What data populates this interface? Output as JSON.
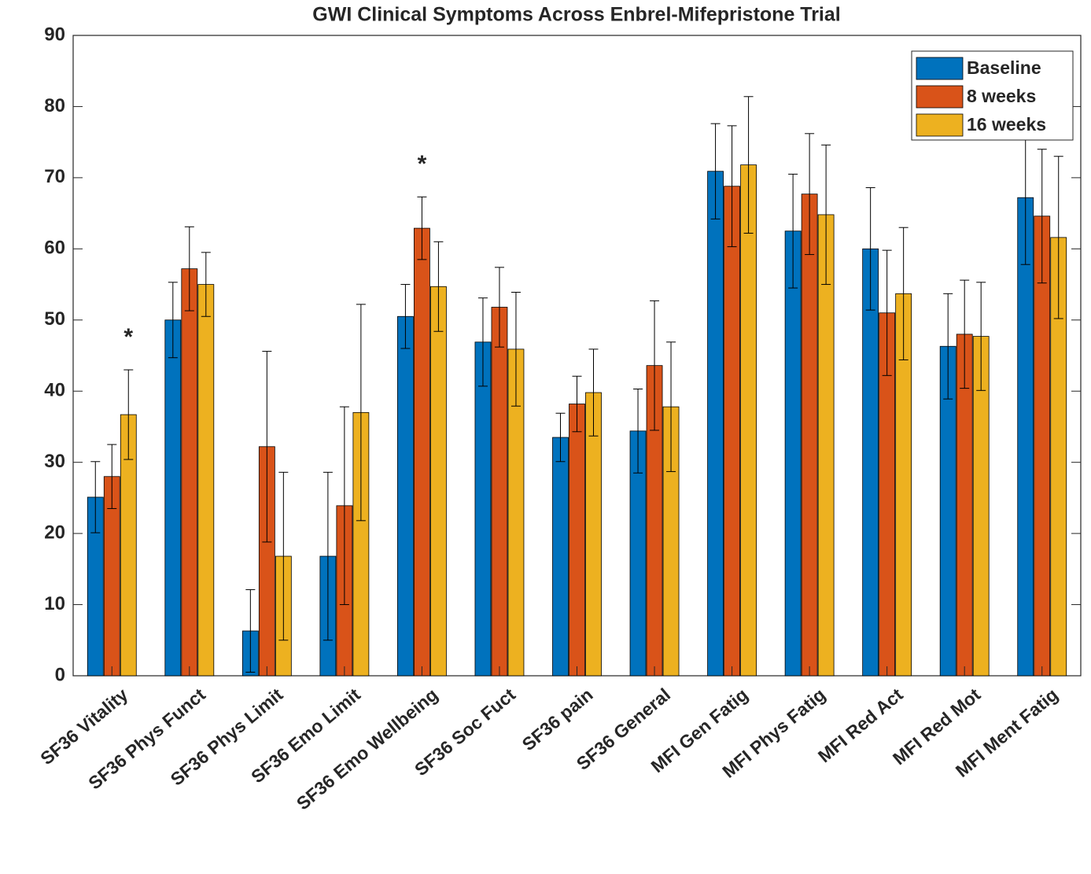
{
  "chart_data": {
    "type": "bar",
    "title": "GWI Clinical Symptoms Across Enbrel-Mifepristone Trial",
    "categories": [
      "SF36 Vitality",
      "SF36 Phys Funct",
      "SF36 Phys Limit",
      "SF36 Emo Limit",
      "SF36 Emo Wellbeing",
      "SF36 Soc Fuct",
      "SF36 pain",
      "SF36 General",
      "MFI Gen Fatig",
      "MFI Phys Fatig",
      "MFI Red Act",
      "MFI Red Mot",
      "MFI Ment Fatig"
    ],
    "series": [
      {
        "name": "Baseline",
        "color": "#0072BD",
        "values": [
          25.1,
          50,
          6.3,
          16.8,
          50.5,
          46.9,
          33.5,
          34.4,
          70.9,
          62.5,
          60,
          46.3,
          67.2
        ],
        "errors": [
          5,
          5.3,
          5.8,
          11.8,
          4.5,
          6.2,
          3.4,
          5.9,
          6.7,
          8,
          8.6,
          7.4,
          9.4
        ]
      },
      {
        "name": "8 weeks",
        "color": "#D95319",
        "values": [
          28,
          57.2,
          32.2,
          23.9,
          62.9,
          51.8,
          38.2,
          43.6,
          68.8,
          67.7,
          51,
          48,
          64.6
        ],
        "errors": [
          4.5,
          5.9,
          13.4,
          13.9,
          4.4,
          5.6,
          3.9,
          9.1,
          8.5,
          8.5,
          8.8,
          7.6,
          9.4
        ]
      },
      {
        "name": "16 weeks",
        "color": "#EDB120",
        "values": [
          36.7,
          55,
          16.8,
          37,
          54.7,
          45.9,
          39.8,
          37.8,
          71.8,
          64.8,
          53.7,
          47.7,
          61.6
        ],
        "errors": [
          6.3,
          4.5,
          11.8,
          15.2,
          6.3,
          8,
          6.1,
          9.1,
          9.6,
          9.8,
          9.3,
          7.6,
          11.4
        ]
      }
    ],
    "annotations": [
      {
        "text": "*",
        "category": "SF36 Vitality",
        "series": "16 weeks"
      },
      {
        "text": "*",
        "category": "SF36 Emo Wellbeing",
        "series": "8 weeks"
      }
    ],
    "ylim": [
      0,
      90
    ],
    "yticks": [
      0,
      10,
      20,
      30,
      40,
      50,
      60,
      70,
      80,
      90
    ],
    "legend": "northeast"
  }
}
